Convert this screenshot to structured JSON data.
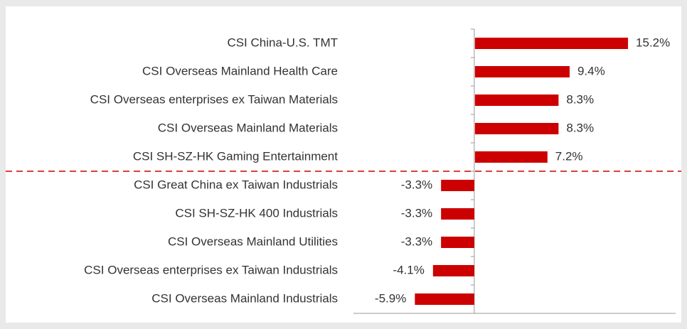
{
  "chart_data": {
    "type": "barh",
    "categories": [
      "CSI China-U.S. TMT",
      "CSI Overseas Mainland Health Care",
      "CSI Overseas enterprises ex Taiwan Materials",
      "CSI Overseas Mainland Materials",
      "CSI SH-SZ-HK Gaming Entertainment",
      "CSI Great China ex Taiwan Industrials",
      "CSI SH-SZ-HK 400 Industrials",
      "CSI Overseas Mainland Utilities",
      "CSI Overseas enterprises ex Taiwan Industrials",
      "CSI Overseas Mainland Industrials"
    ],
    "values": [
      15.2,
      9.4,
      8.3,
      8.3,
      7.2,
      -3.3,
      -3.3,
      -3.3,
      -4.1,
      -5.9
    ],
    "value_labels": [
      "15.2%",
      "9.4%",
      "8.3%",
      "8.3%",
      "7.2%",
      "-3.3%",
      "-3.3%",
      "-3.3%",
      "-4.1%",
      "-5.9%"
    ],
    "color": "#cc0000",
    "xlim": [
      -12,
      20
    ]
  }
}
